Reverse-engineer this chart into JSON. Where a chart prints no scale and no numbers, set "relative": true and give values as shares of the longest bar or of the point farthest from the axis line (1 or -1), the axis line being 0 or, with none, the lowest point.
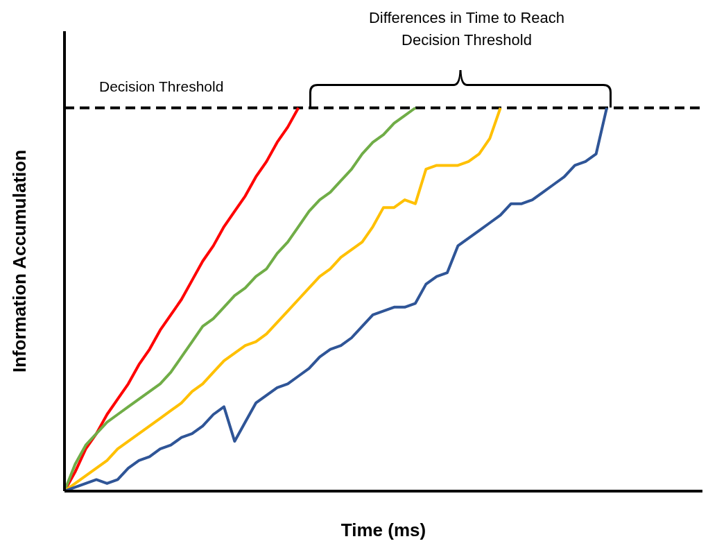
{
  "chart_data": {
    "type": "line",
    "relative": true,
    "xlabel": "Time (ms)",
    "ylabel": "Information Accumulation",
    "grid": false,
    "legend": false,
    "marker": "none",
    "line_style": "solid",
    "categories": [
      null,
      null,
      null,
      null,
      null,
      null,
      null,
      null,
      null,
      null,
      null,
      null,
      null,
      null,
      null,
      null,
      null,
      null,
      null,
      null,
      null,
      null,
      null,
      null,
      null,
      null,
      null,
      null,
      null,
      null,
      null,
      null,
      null,
      null,
      null,
      null,
      null,
      null,
      null,
      null,
      null,
      null,
      null,
      null,
      null,
      null,
      null,
      null,
      null,
      null,
      null,
      null,
      null,
      null,
      null,
      null,
      null,
      null,
      null,
      null,
      null
    ],
    "series": [
      {
        "color": "#ff0000",
        "values": [
          0,
          0.05,
          0.11,
          0.15,
          0.2,
          0.24,
          0.28,
          0.33,
          0.37,
          0.42,
          0.46,
          0.5,
          0.55,
          0.6,
          0.64,
          0.69,
          0.73,
          0.77,
          0.82,
          0.86,
          0.91,
          0.95,
          1.0,
          null,
          null,
          null,
          null,
          null,
          null,
          null,
          null,
          null,
          null,
          null,
          null,
          null,
          null,
          null,
          null,
          null,
          null,
          null,
          null,
          null,
          null,
          null,
          null,
          null,
          null,
          null,
          null,
          null,
          null,
          null,
          null,
          null,
          null,
          null,
          null,
          null,
          null
        ]
      },
      {
        "color": "#70ad47",
        "values": [
          0,
          0.07,
          0.12,
          0.15,
          0.18,
          0.2,
          0.22,
          0.24,
          0.26,
          0.28,
          0.31,
          0.35,
          0.39,
          0.43,
          0.45,
          0.48,
          0.51,
          0.53,
          0.56,
          0.58,
          0.62,
          0.65,
          0.69,
          0.73,
          0.76,
          0.78,
          0.81,
          0.84,
          0.88,
          0.91,
          0.93,
          0.96,
          0.98,
          1.0,
          null,
          null,
          null,
          null,
          null,
          null,
          null,
          null,
          null,
          null,
          null,
          null,
          null,
          null,
          null,
          null,
          null,
          null,
          null,
          null,
          null,
          null,
          null,
          null,
          null,
          null,
          null
        ]
      },
      {
        "color": "#ffc000",
        "values": [
          0,
          0.02,
          0.04,
          0.06,
          0.08,
          0.11,
          0.13,
          0.15,
          0.17,
          0.19,
          0.21,
          0.23,
          0.26,
          0.28,
          0.31,
          0.34,
          0.36,
          0.38,
          0.39,
          0.41,
          0.44,
          0.47,
          0.5,
          0.53,
          0.56,
          0.58,
          0.61,
          0.63,
          0.65,
          0.69,
          0.74,
          0.74,
          0.76,
          0.75,
          0.84,
          0.85,
          0.85,
          0.85,
          0.86,
          0.88,
          0.92,
          1.0,
          null,
          null,
          null,
          null,
          null,
          null,
          null,
          null,
          null,
          null,
          null,
          null,
          null,
          null,
          null,
          null,
          null,
          null,
          null
        ]
      },
      {
        "color": "#2f5597",
        "values": [
          0,
          0.01,
          0.02,
          0.03,
          0.02,
          0.03,
          0.06,
          0.08,
          0.09,
          0.11,
          0.12,
          0.14,
          0.15,
          0.17,
          0.2,
          0.22,
          0.13,
          0.18,
          0.23,
          0.25,
          0.27,
          0.28,
          0.3,
          0.32,
          0.35,
          0.37,
          0.38,
          0.4,
          0.43,
          0.46,
          0.47,
          0.48,
          0.48,
          0.49,
          0.54,
          0.56,
          0.57,
          0.64,
          0.66,
          0.68,
          0.7,
          0.72,
          0.75,
          0.75,
          0.76,
          0.78,
          0.8,
          0.82,
          0.85,
          0.86,
          0.88,
          1.0,
          null,
          null,
          null,
          null,
          null,
          null,
          null,
          null,
          null
        ]
      }
    ],
    "ref_lines": [
      {
        "axis": "y",
        "value": 1,
        "label": "Decision Threshold",
        "color": "#000000",
        "line_style": "dashed"
      }
    ],
    "annotations": [
      "Differences in Time to Reach Decision Threshold"
    ]
  }
}
